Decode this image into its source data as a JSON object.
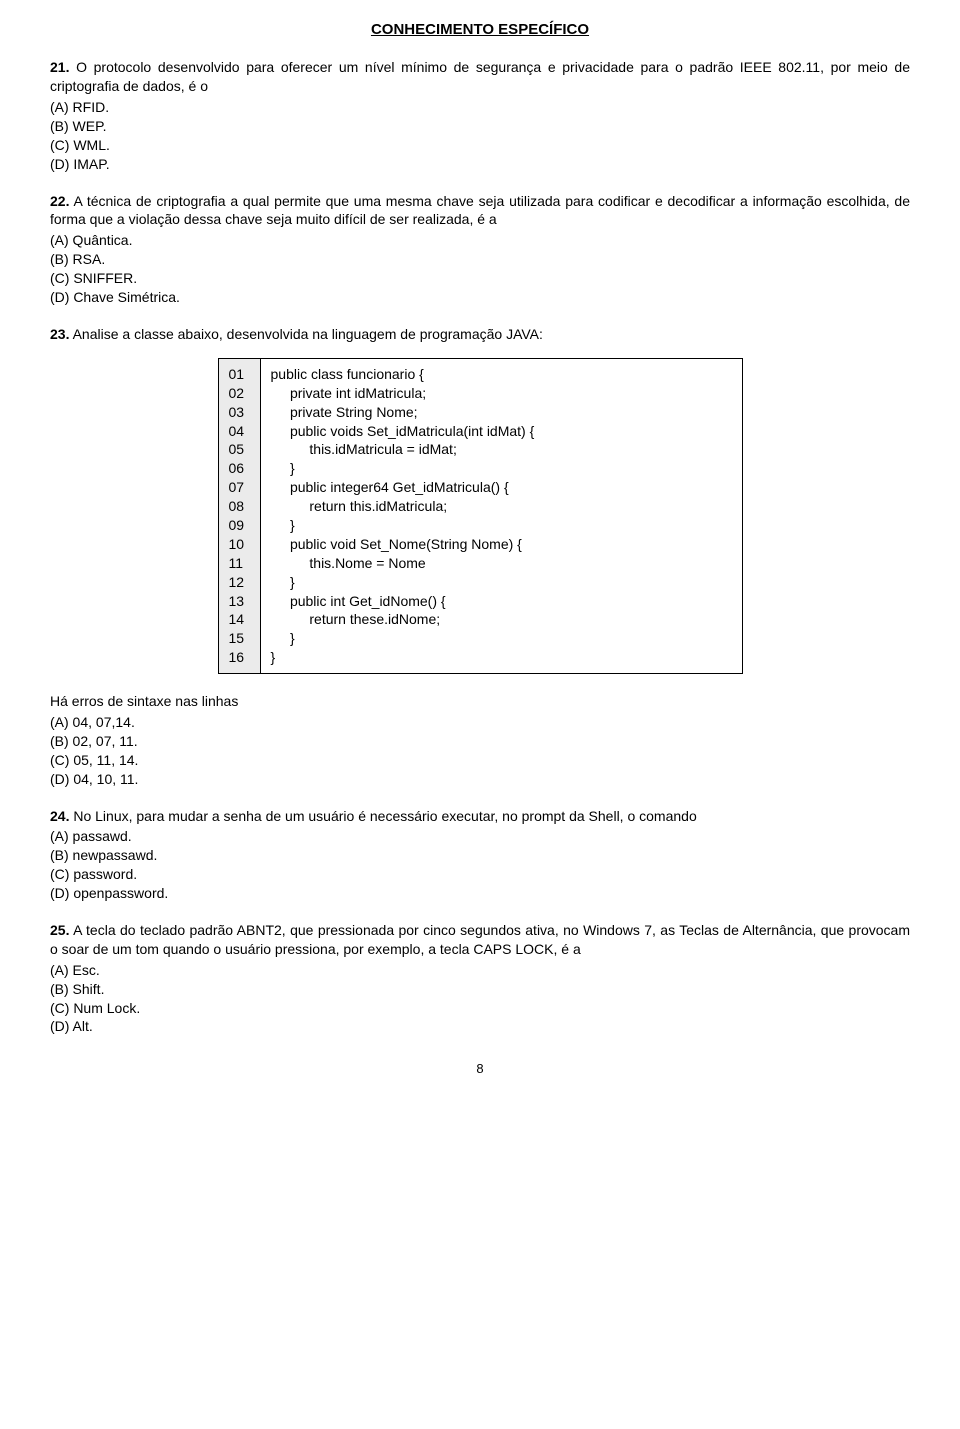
{
  "section_title": "CONHECIMENTO ESPECÍFICO",
  "q21": {
    "num": "21.",
    "text": "O protocolo desenvolvido para oferecer um nível mínimo de segurança e privacidade para o padrão IEEE 802.11, por meio de criptografia de dados, é o",
    "A": "(A)  RFID.",
    "B": "(B)  WEP.",
    "C": "(C)  WML.",
    "D": "(D)  IMAP."
  },
  "q22": {
    "num": "22.",
    "text": "A técnica de criptografia a qual permite que uma mesma chave seja utilizada para codificar e decodificar a informação escolhida, de forma que a violação dessa chave seja muito difícil de ser realizada, é a",
    "A": "(A)  Quântica.",
    "B": "(B)  RSA.",
    "C": "(C)  SNIFFER.",
    "D": "(D)  Chave Simétrica."
  },
  "q23": {
    "num": "23.",
    "text": "Analise a classe abaixo, desenvolvida na linguagem de programação JAVA:",
    "code_ln": "01\n02\n03\n04\n05\n06\n07\n08\n09\n10\n11\n12\n13\n14\n15\n16",
    "code_body": "public class funcionario {\n     private int idMatricula;\n     private String Nome;\n     public voids Set_idMatricula(int idMat) {\n          this.idMatricula = idMat;\n     }\n     public integer64 Get_idMatricula() {\n          return this.idMatricula;\n     }\n     public void Set_Nome(String Nome) {\n          this.Nome = Nome\n     }\n     public int Get_idNome() {\n          return these.idNome;\n     }\n}",
    "after": "Há erros de sintaxe nas linhas",
    "A": "(A)  04, 07,14.",
    "B": "(B)  02, 07, 11.",
    "C": "(C)  05, 11, 14.",
    "D": "(D)  04, 10, 11."
  },
  "q24": {
    "num": "24.",
    "text": "No Linux, para mudar a senha de um usuário é necessário executar, no prompt da Shell, o comando",
    "A": "(A)  passawd.",
    "B": "(B)  newpassawd.",
    "C": "(C)  password.",
    "D": "(D)  openpassword."
  },
  "q25": {
    "num": "25.",
    "text": "A tecla do teclado padrão ABNT2, que pressionada por cinco segundos ativa, no Windows 7, as Teclas de Alternância, que provocam o soar de um tom quando o usuário pressiona, por exemplo, a tecla CAPS LOCK, é a",
    "A": "(A)  Esc.",
    "B": "(B)  Shift.",
    "C": "(C)  Num Lock.",
    "D": "(D)  Alt."
  },
  "page_number": "8"
}
